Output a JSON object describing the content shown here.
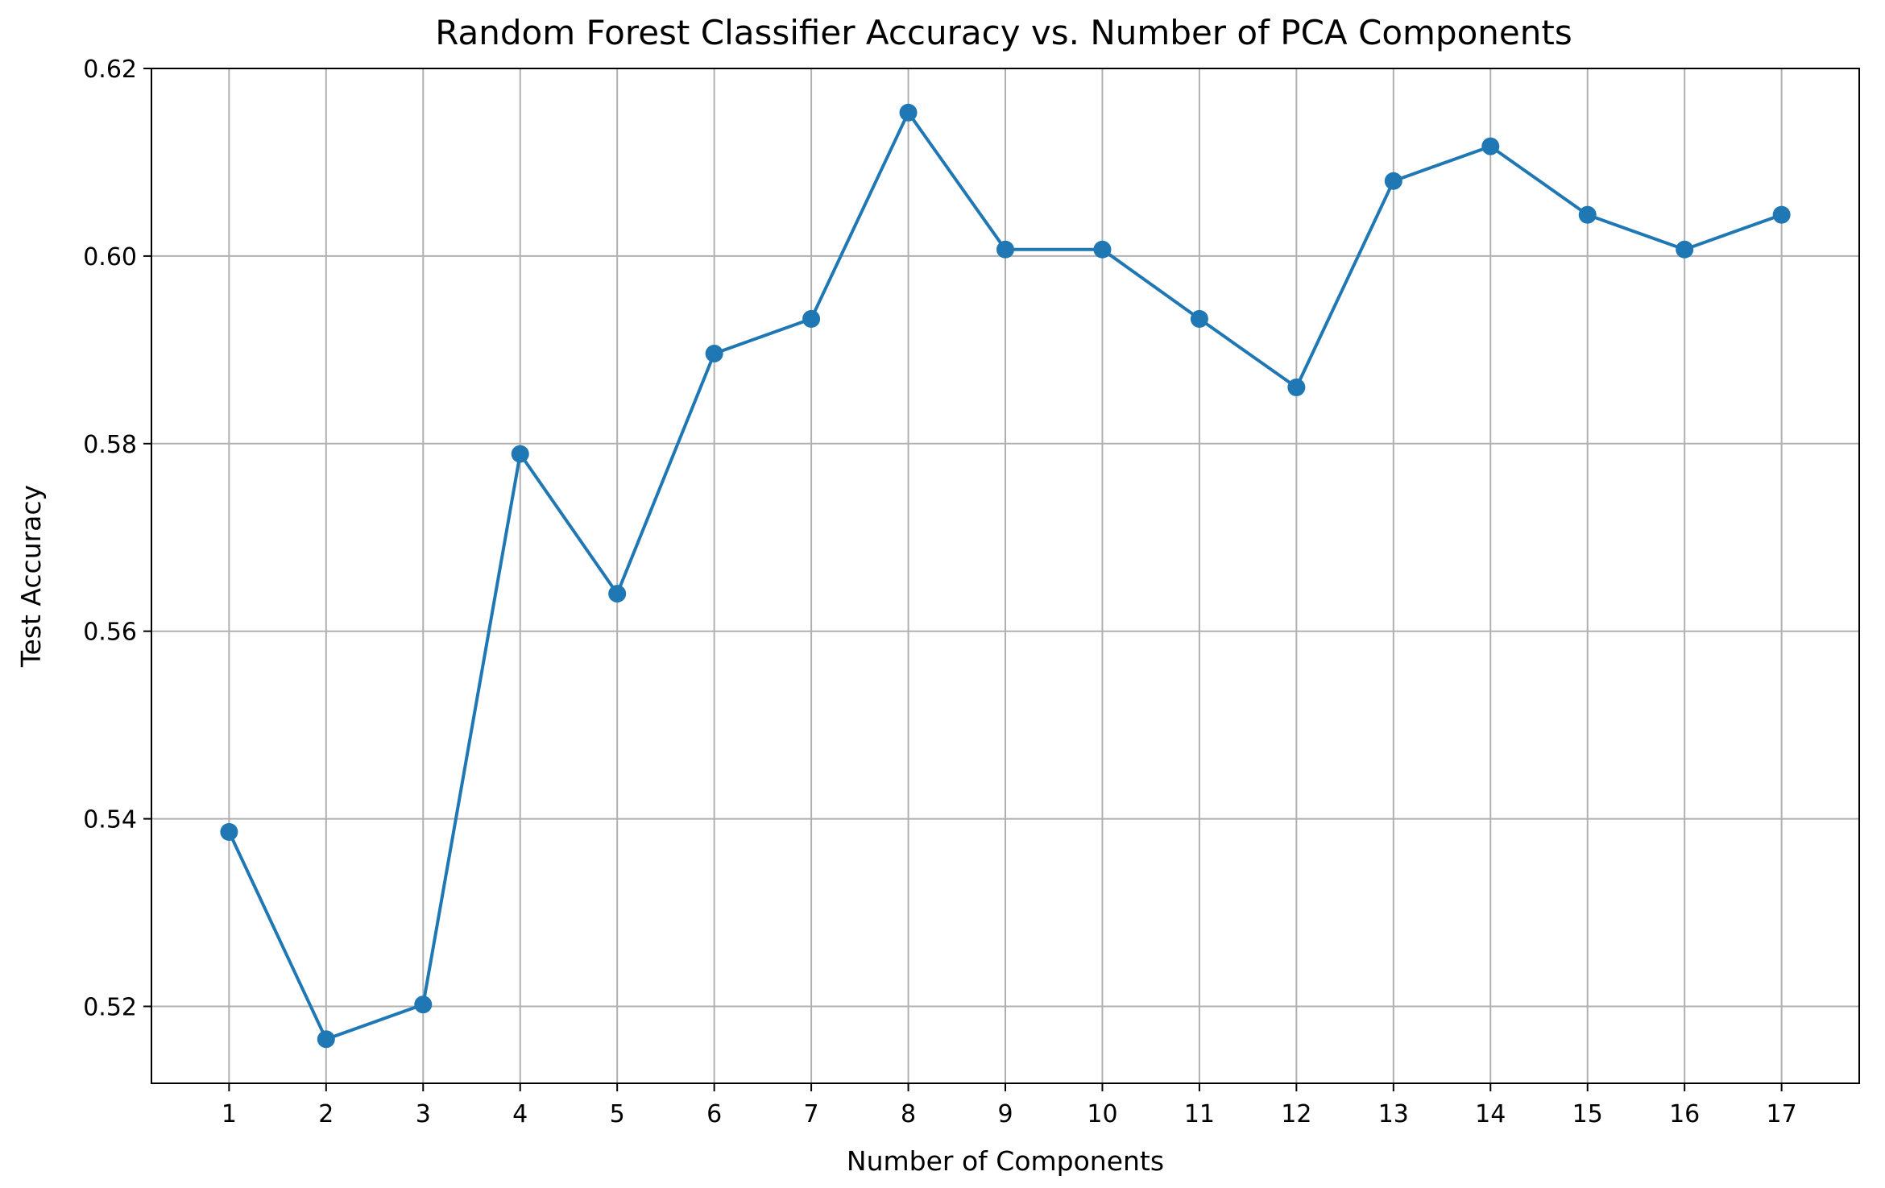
{
  "chart_data": {
    "type": "line",
    "title": "Random Forest Classifier Accuracy vs. Number of PCA Components",
    "xlabel": "Number of Components",
    "ylabel": "Test Accuracy",
    "x": [
      1,
      2,
      3,
      4,
      5,
      6,
      7,
      8,
      9,
      10,
      11,
      12,
      13,
      14,
      15,
      16,
      17
    ],
    "x_tick_labels": [
      "1",
      "2",
      "3",
      "4",
      "5",
      "6",
      "7",
      "8",
      "9",
      "10",
      "11",
      "12",
      "13",
      "14",
      "15",
      "16",
      "17"
    ],
    "series": [
      {
        "values": [
          0.5386,
          0.5165,
          0.5202,
          0.5789,
          0.564,
          0.5896,
          0.5933,
          0.6153,
          0.6007,
          0.6007,
          0.5933,
          0.586,
          0.608,
          0.6117,
          0.6044,
          0.6007,
          0.6044
        ],
        "color": "#1f77b4",
        "marker": "circle"
      }
    ],
    "y_ticks": [
      0.52,
      0.54,
      0.56,
      0.58,
      0.6,
      0.62
    ],
    "y_tick_labels": [
      "0.52",
      "0.54",
      "0.56",
      "0.58",
      "0.60",
      "0.62"
    ],
    "xlim": [
      0.2,
      17.8
    ],
    "ylim": [
      0.5118,
      0.62
    ],
    "grid": true,
    "grid_color": "#b0b0b0"
  }
}
